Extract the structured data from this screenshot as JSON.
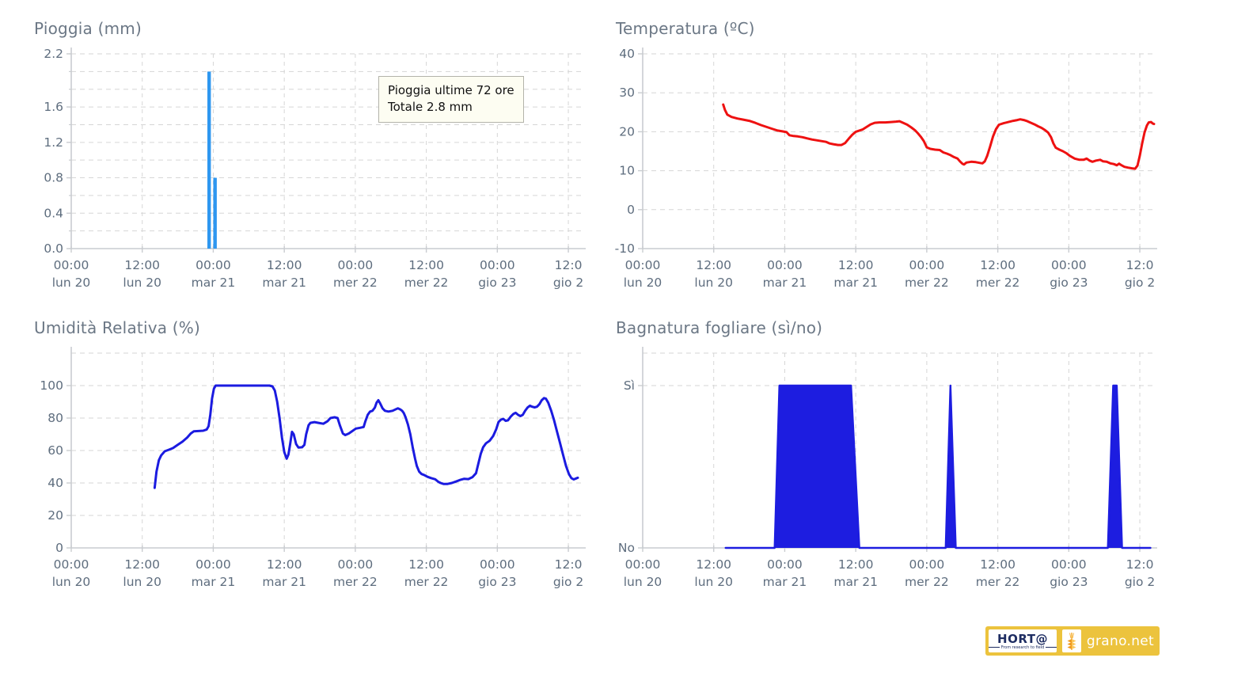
{
  "x_axis": {
    "domain_hours": [
      0,
      86.4
    ],
    "tick_interval_hours": 12,
    "ticks": [
      {
        "time": "00:00",
        "date": "lun 20"
      },
      {
        "time": "12:00",
        "date": "lun 20"
      },
      {
        "time": "00:00",
        "date": "mar 21"
      },
      {
        "time": "12:00",
        "date": "mar 21"
      },
      {
        "time": "00:00",
        "date": "mer 22"
      },
      {
        "time": "12:00",
        "date": "mer 22"
      },
      {
        "time": "00:00",
        "date": "gio 23"
      },
      {
        "time": "12:0",
        "date": "gio 2"
      }
    ]
  },
  "chart_data": [
    {
      "key": "pioggia",
      "type": "bar",
      "title": "Pioggia (mm)",
      "ylabel": "mm",
      "color": "#2e97f0",
      "ylim": [
        0,
        2.2
      ],
      "grid_values": [
        0,
        0.2,
        0.4,
        0.6,
        0.8,
        1.0,
        1.2,
        1.4,
        1.6,
        1.8,
        2.0,
        2.2
      ],
      "y_ticks": [
        {
          "value": 0,
          "label": "0.0"
        },
        {
          "value": 0.4,
          "label": "0.4"
        },
        {
          "value": 0.8,
          "label": "0.8"
        },
        {
          "value": 1.2,
          "label": "1.2"
        },
        {
          "value": 1.6,
          "label": "1.6"
        },
        {
          "value": 2.2,
          "label": "2.2"
        }
      ],
      "minor_ticks": true,
      "bars": [
        [
          23.3,
          2.0
        ],
        [
          24.3,
          0.8
        ]
      ],
      "annotation": {
        "line1": "Pioggia ultime 72 ore",
        "line2": "Totale 2.8 mm"
      }
    },
    {
      "key": "temperatura",
      "type": "line",
      "title": "Temperatura (ºC)",
      "ylabel": "ºC",
      "color": "#ee1111",
      "ylim": [
        -10,
        40
      ],
      "grid_values": [
        -10,
        0,
        10,
        20,
        30,
        40
      ],
      "y_ticks": [
        {
          "value": -10,
          "label": "-10"
        },
        {
          "value": 0,
          "label": "0"
        },
        {
          "value": 10,
          "label": "10"
        },
        {
          "value": 20,
          "label": "20"
        },
        {
          "value": 30,
          "label": "30"
        },
        {
          "value": 40,
          "label": "40"
        }
      ],
      "points": [
        [
          13.6,
          27.0
        ],
        [
          13.9,
          25.6
        ],
        [
          14.3,
          24.4
        ],
        [
          15,
          23.8
        ],
        [
          16,
          23.4
        ],
        [
          17,
          23.1
        ],
        [
          18,
          22.8
        ],
        [
          19,
          22.3
        ],
        [
          20,
          21.7
        ],
        [
          21,
          21.2
        ],
        [
          22,
          20.7
        ],
        [
          22.8,
          20.3
        ],
        [
          23.6,
          20.1
        ],
        [
          24.3,
          19.9
        ],
        [
          24.8,
          19.1
        ],
        [
          25.5,
          18.9
        ],
        [
          26.2,
          18.8
        ],
        [
          27,
          18.6
        ],
        [
          27.8,
          18.3
        ],
        [
          28.6,
          18.0
        ],
        [
          29.4,
          17.8
        ],
        [
          30.2,
          17.6
        ],
        [
          31,
          17.4
        ],
        [
          31.6,
          17.0
        ],
        [
          32.2,
          16.8
        ],
        [
          33,
          16.6
        ],
        [
          33.6,
          16.6
        ],
        [
          34.2,
          17.1
        ],
        [
          34.8,
          18.2
        ],
        [
          35.4,
          19.2
        ],
        [
          36,
          20.0
        ],
        [
          36.6,
          20.3
        ],
        [
          37.2,
          20.6
        ],
        [
          37.8,
          21.2
        ],
        [
          38.5,
          21.9
        ],
        [
          39.2,
          22.3
        ],
        [
          40,
          22.4
        ],
        [
          41,
          22.4
        ],
        [
          42,
          22.5
        ],
        [
          42.8,
          22.6
        ],
        [
          43.4,
          22.7
        ],
        [
          44,
          22.3
        ],
        [
          44.7,
          21.8
        ],
        [
          45.4,
          21.1
        ],
        [
          46,
          20.4
        ],
        [
          46.5,
          19.6
        ],
        [
          47,
          18.7
        ],
        [
          47.5,
          17.6
        ],
        [
          48,
          16.0
        ],
        [
          48.6,
          15.6
        ],
        [
          49.4,
          15.4
        ],
        [
          50.2,
          15.3
        ],
        [
          50.8,
          14.7
        ],
        [
          51.4,
          14.4
        ],
        [
          52,
          14.0
        ],
        [
          52.6,
          13.5
        ],
        [
          53.2,
          13.1
        ],
        [
          53.6,
          12.4
        ],
        [
          54,
          11.8
        ],
        [
          54.3,
          11.6
        ],
        [
          54.7,
          12.1
        ],
        [
          55.5,
          12.3
        ],
        [
          56.3,
          12.2
        ],
        [
          57,
          12.0
        ],
        [
          57.4,
          11.9
        ],
        [
          57.8,
          12.4
        ],
        [
          58.2,
          13.8
        ],
        [
          58.7,
          16.2
        ],
        [
          59.2,
          18.8
        ],
        [
          59.7,
          20.7
        ],
        [
          60.2,
          21.8
        ],
        [
          61,
          22.2
        ],
        [
          61.8,
          22.5
        ],
        [
          62.6,
          22.8
        ],
        [
          63.3,
          23.0
        ],
        [
          63.8,
          23.2
        ],
        [
          64.4,
          23.0
        ],
        [
          65,
          22.7
        ],
        [
          65.6,
          22.3
        ],
        [
          66.2,
          21.9
        ],
        [
          66.8,
          21.4
        ],
        [
          67.4,
          21.0
        ],
        [
          68,
          20.4
        ],
        [
          68.5,
          19.8
        ],
        [
          69,
          18.6
        ],
        [
          69.4,
          17.0
        ],
        [
          69.8,
          15.9
        ],
        [
          70.4,
          15.4
        ],
        [
          71,
          15.0
        ],
        [
          71.6,
          14.5
        ],
        [
          72.2,
          13.8
        ],
        [
          73,
          13.1
        ],
        [
          73.8,
          12.8
        ],
        [
          74.5,
          12.8
        ],
        [
          75,
          13.1
        ],
        [
          75.5,
          12.6
        ],
        [
          76,
          12.3
        ],
        [
          76.6,
          12.6
        ],
        [
          77.3,
          12.8
        ],
        [
          77.8,
          12.4
        ],
        [
          78.4,
          12.3
        ],
        [
          79,
          11.9
        ],
        [
          79.6,
          11.7
        ],
        [
          80.1,
          11.4
        ],
        [
          80.5,
          11.8
        ],
        [
          80.9,
          11.4
        ],
        [
          81.4,
          11.0
        ],
        [
          82,
          10.8
        ],
        [
          82.7,
          10.6
        ],
        [
          83.2,
          10.5
        ],
        [
          83.6,
          11.3
        ],
        [
          84,
          13.9
        ],
        [
          84.4,
          17.0
        ],
        [
          84.8,
          19.8
        ],
        [
          85.2,
          21.6
        ],
        [
          85.5,
          22.4
        ],
        [
          85.9,
          22.5
        ],
        [
          86.2,
          22.1
        ],
        [
          86.4,
          22.0
        ]
      ]
    },
    {
      "key": "umidita",
      "type": "line",
      "title": "Umidità Relativa (%)",
      "ylabel": "%",
      "color": "#1b1be0",
      "ylim": [
        0,
        120
      ],
      "grid_values": [
        0,
        20,
        40,
        60,
        80,
        100,
        120
      ],
      "y_ticks": [
        {
          "value": 0,
          "label": "0"
        },
        {
          "value": 20,
          "label": "20"
        },
        {
          "value": 40,
          "label": "40"
        },
        {
          "value": 60,
          "label": "60"
        },
        {
          "value": 80,
          "label": "80"
        },
        {
          "value": 100,
          "label": "100"
        }
      ],
      "points": [
        [
          14.1,
          37
        ],
        [
          14.4,
          47
        ],
        [
          14.8,
          54
        ],
        [
          15.2,
          57
        ],
        [
          15.8,
          59.5
        ],
        [
          16.5,
          60.5
        ],
        [
          17.2,
          61.5
        ],
        [
          18,
          63.5
        ],
        [
          18.8,
          65.5
        ],
        [
          19.6,
          68
        ],
        [
          20.2,
          70.5
        ],
        [
          20.7,
          71.8
        ],
        [
          21.5,
          72
        ],
        [
          22.3,
          72.2
        ],
        [
          22.9,
          73
        ],
        [
          23.2,
          75
        ],
        [
          23.5,
          82
        ],
        [
          23.8,
          92
        ],
        [
          24.1,
          98
        ],
        [
          24.4,
          100
        ],
        [
          26,
          100
        ],
        [
          28,
          100
        ],
        [
          30,
          100
        ],
        [
          32,
          100
        ],
        [
          33.5,
          100
        ],
        [
          34,
          99.5
        ],
        [
          34.4,
          97
        ],
        [
          34.8,
          90
        ],
        [
          35.2,
          80
        ],
        [
          35.6,
          68
        ],
        [
          36,
          59
        ],
        [
          36.4,
          55
        ],
        [
          36.7,
          57.5
        ],
        [
          37,
          64
        ],
        [
          37.3,
          71.5
        ],
        [
          37.6,
          70
        ],
        [
          38,
          64
        ],
        [
          38.4,
          61.8
        ],
        [
          39,
          62
        ],
        [
          39.4,
          63.5
        ],
        [
          39.7,
          70
        ],
        [
          40.1,
          75.5
        ],
        [
          40.4,
          77
        ],
        [
          41.1,
          77.5
        ],
        [
          41.8,
          77
        ],
        [
          42.6,
          76.5
        ],
        [
          43.3,
          78
        ],
        [
          43.8,
          80
        ],
        [
          44.5,
          80.5
        ],
        [
          45,
          80
        ],
        [
          45.4,
          75.5
        ],
        [
          45.9,
          70.5
        ],
        [
          46.3,
          69.5
        ],
        [
          46.9,
          70.5
        ],
        [
          47.5,
          72
        ],
        [
          48.1,
          73.5
        ],
        [
          48.8,
          74
        ],
        [
          49.4,
          74.5
        ],
        [
          49.7,
          78
        ],
        [
          50.1,
          82
        ],
        [
          50.5,
          84
        ],
        [
          50.9,
          84.5
        ],
        [
          51.3,
          86.5
        ],
        [
          51.6,
          89.5
        ],
        [
          51.9,
          91
        ],
        [
          52.2,
          89
        ],
        [
          52.6,
          86
        ],
        [
          53,
          84.5
        ],
        [
          53.6,
          84
        ],
        [
          54.3,
          84.5
        ],
        [
          54.9,
          85.5
        ],
        [
          55.2,
          86
        ],
        [
          55.6,
          85.3
        ],
        [
          55.9,
          84.5
        ],
        [
          56.2,
          83
        ],
        [
          56.5,
          80.5
        ],
        [
          56.9,
          76
        ],
        [
          57.3,
          70
        ],
        [
          57.7,
          62
        ],
        [
          58.1,
          55
        ],
        [
          58.4,
          50.5
        ],
        [
          58.8,
          47
        ],
        [
          59.2,
          45.5
        ],
        [
          59.6,
          45
        ],
        [
          60.2,
          43.8
        ],
        [
          60.8,
          43
        ],
        [
          61.5,
          42.3
        ],
        [
          62,
          40.8
        ],
        [
          62.4,
          40
        ],
        [
          62.9,
          39.4
        ],
        [
          63.6,
          39.4
        ],
        [
          64.3,
          40
        ],
        [
          65.1,
          41
        ],
        [
          65.8,
          42
        ],
        [
          66.4,
          42.6
        ],
        [
          67.1,
          42.4
        ],
        [
          67.8,
          43.6
        ],
        [
          68.4,
          46
        ],
        [
          68.8,
          52
        ],
        [
          69.2,
          58
        ],
        [
          69.6,
          62
        ],
        [
          70.1,
          64.5
        ],
        [
          70.7,
          66
        ],
        [
          71.3,
          69
        ],
        [
          71.8,
          73
        ],
        [
          72.2,
          77.5
        ],
        [
          72.6,
          79
        ],
        [
          73,
          79.5
        ],
        [
          73.4,
          78.3
        ],
        [
          73.8,
          78.6
        ],
        [
          74.3,
          81
        ],
        [
          74.7,
          82.5
        ],
        [
          75.1,
          83.2
        ],
        [
          75.5,
          82
        ],
        [
          75.9,
          81.2
        ],
        [
          76.3,
          82
        ],
        [
          76.7,
          84.5
        ],
        [
          77.1,
          86.5
        ],
        [
          77.5,
          87.6
        ],
        [
          77.9,
          87
        ],
        [
          78.3,
          86.6
        ],
        [
          78.7,
          87
        ],
        [
          79.1,
          88.5
        ],
        [
          79.5,
          91
        ],
        [
          79.9,
          92.3
        ],
        [
          80.2,
          92
        ],
        [
          80.6,
          89.5
        ],
        [
          81.1,
          84.5
        ],
        [
          81.6,
          78.5
        ],
        [
          82.1,
          71.5
        ],
        [
          82.6,
          64.5
        ],
        [
          83.1,
          57.5
        ],
        [
          83.6,
          50.5
        ],
        [
          84.1,
          45.5
        ],
        [
          84.5,
          43
        ],
        [
          84.9,
          42.2
        ],
        [
          85.3,
          42.8
        ],
        [
          85.6,
          43.2
        ]
      ]
    },
    {
      "key": "bagnatura",
      "type": "area",
      "title": "Bagnatura fogliare (sì/no)",
      "ylabel": "sì/no",
      "color": "#1d1de0",
      "ylim": [
        0,
        1.2
      ],
      "grid_values": [
        0,
        1,
        1.2
      ],
      "y_ticks": [
        {
          "value": 0,
          "label": "No"
        },
        {
          "value": 1,
          "label": "Sì"
        }
      ],
      "points": [
        [
          14,
          0
        ],
        [
          22.3,
          0
        ],
        [
          23.1,
          1
        ],
        [
          35.2,
          1
        ],
        [
          36.6,
          0
        ],
        [
          51.2,
          0
        ],
        [
          52,
          1
        ],
        [
          52.9,
          0
        ],
        [
          78.6,
          0
        ],
        [
          79.5,
          1
        ],
        [
          80.1,
          1
        ],
        [
          81,
          0
        ],
        [
          85.8,
          0
        ]
      ]
    }
  ],
  "logo": {
    "brand": "HORT@",
    "tagline": "From research to field",
    "product": "grano.net",
    "bg": "#ecc33d"
  },
  "style": {
    "grid_color": "#d6d6d6",
    "axis_color": "#c9ccd0",
    "tick_text_color": "#5e6d7e",
    "title_color": "#6b7785",
    "tooltip_bg": "#fdfdf2"
  }
}
